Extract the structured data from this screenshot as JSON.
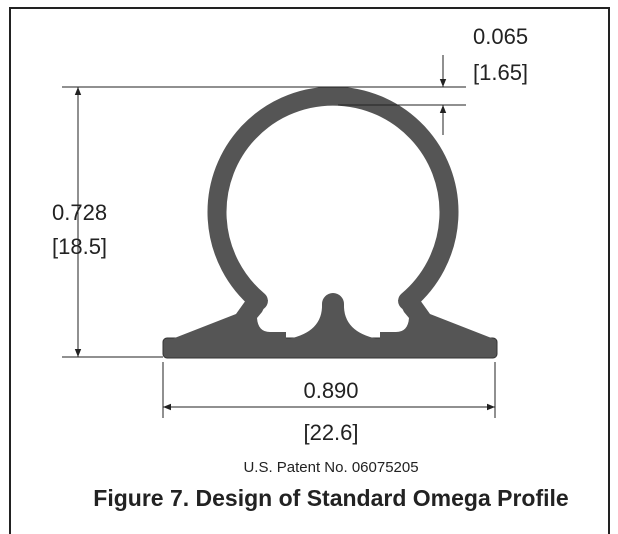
{
  "dimensions": [
    {
      "value": "0.065",
      "metric": "[1.65]"
    },
    {
      "value": "0.728",
      "metric": "[18.5]"
    },
    {
      "value": "0.890",
      "metric": "[22.6]"
    }
  ],
  "patent": "U.S. Patent No. 06075205",
  "caption": "Figure 7. Design of Standard Omega Profile"
}
